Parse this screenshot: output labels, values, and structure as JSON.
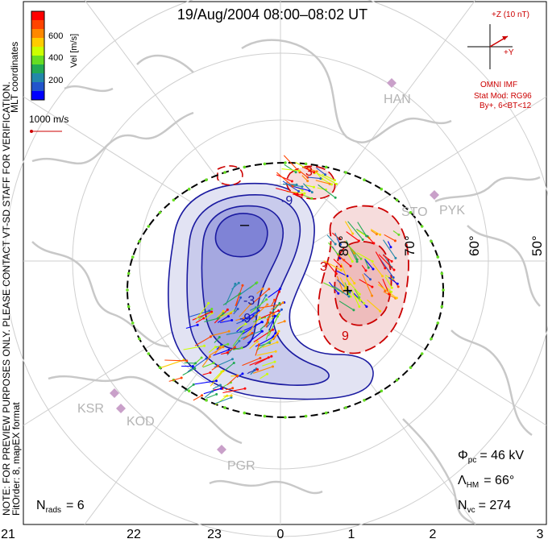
{
  "title": "19/Aug/2004 08:00–08:02 UT",
  "colorbar": {
    "label": "Vel [m/s]",
    "ticks": [
      "600",
      "400",
      "200"
    ],
    "colors": [
      "#ff0000",
      "#ff4400",
      "#ff8800",
      "#ffcc00",
      "#ccff00",
      "#66dd22",
      "#22aa55",
      "#2288aa",
      "#2255cc",
      "#0000ff"
    ]
  },
  "coord_label": "MLT coordinates",
  "scale_vector": "1000 m/s",
  "disclaimer": "NOTE: FOR PREVIEW PURPOSES ONLY. PLEASE CONTACT VT-SD STAFF FOR VERIFICATION.",
  "fit_label": "FitOrder: 8, mapEX format",
  "imf": {
    "z_label": "+Z (10 nT)",
    "y_label": "+Y",
    "source": "OMNI IMF",
    "model_line1": "Stat Mod: RG96",
    "model_line2": "By+, 6<BT<12"
  },
  "stations": [
    "HAN",
    "STO",
    "PYK",
    "KSR",
    "KOD",
    "PGR"
  ],
  "latitude_labels": [
    "80°",
    "70°",
    "60°",
    "50°"
  ],
  "contour_labels": [
    "-9",
    "3",
    "3",
    "9",
    "-3",
    "-9"
  ],
  "markers": {
    "min": "–",
    "max": "+"
  },
  "stats": {
    "phi_sym": "Φ",
    "phi_sub": "pc",
    "phi_val": "= 46 kV",
    "lam_sym": "Λ",
    "lam_sub": "HM",
    "lam_val": "= 66°",
    "nvc_sym": "N",
    "nvc_sub": "vc",
    "nvc_val": "= 274",
    "nrads_sym": "N",
    "nrads_sub": "rads",
    "nrads_val": "= 6"
  },
  "mlt_labels": [
    "21",
    "22",
    "23",
    "0",
    "1",
    "2",
    "3"
  ],
  "colors": {
    "negative_contour": "#1a1aa0",
    "positive_contour": "#cc0000",
    "boundary": "#000000",
    "boundary_dots": "#66dd22",
    "land": "#c8c8c8",
    "station": "#c9a0c9"
  }
}
